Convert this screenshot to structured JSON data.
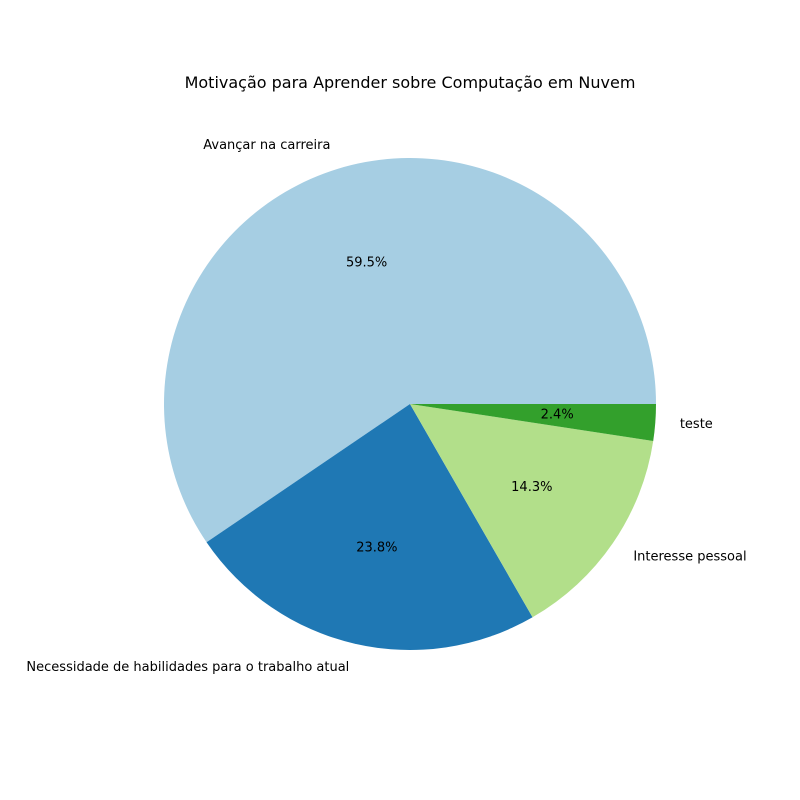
{
  "chart_data": {
    "type": "pie",
    "title": "Motivação para Aprender sobre Computação em Nuvem",
    "slices": [
      {
        "label": "Avançar na carreira",
        "value": 59.5,
        "pct_label": "59.5%",
        "color": "#a6cee3"
      },
      {
        "label": "Necessidade de habilidades para o trabalho atual",
        "value": 23.8,
        "pct_label": "23.8%",
        "color": "#1f78b4"
      },
      {
        "label": "Interesse pessoal",
        "value": 14.3,
        "pct_label": "14.3%",
        "color": "#b2df8a"
      },
      {
        "label": "teste",
        "value": 2.4,
        "pct_label": "2.4%",
        "color": "#33a02c"
      }
    ],
    "start_angle_deg": 0,
    "direction": "counterclockwise",
    "legend": "none"
  }
}
